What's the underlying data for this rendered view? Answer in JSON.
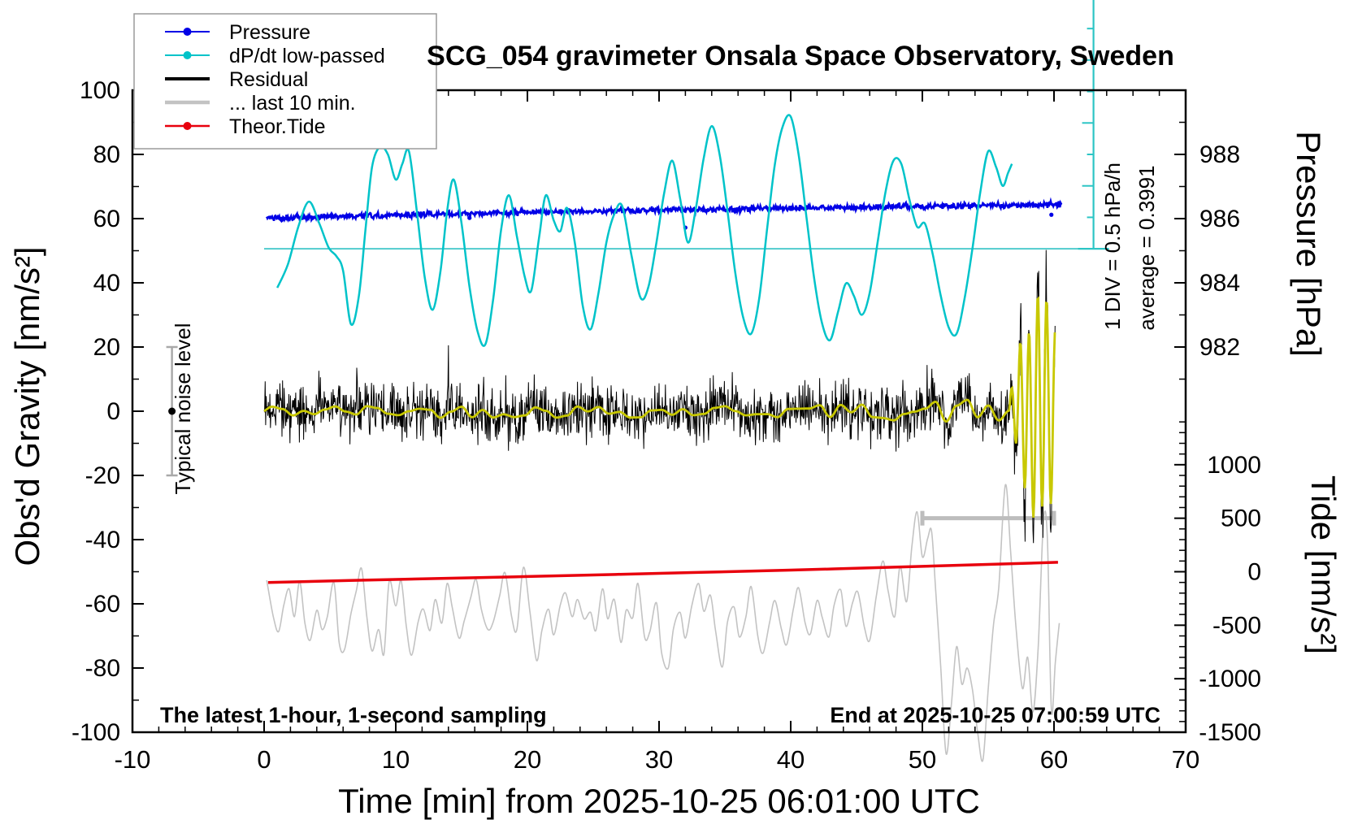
{
  "title": "SCG_054 gravimeter Onsala Space Observatory, Sweden",
  "legend": {
    "items": [
      {
        "label": "Pressure",
        "color": "#0000e6",
        "marker": true,
        "line_width": 2
      },
      {
        "label": "dP/dt low-passed",
        "color": "#00c3c9",
        "marker": true,
        "line_width": 2
      },
      {
        "label": "Residual",
        "color": "#000000",
        "marker": false,
        "line_width": 4
      },
      {
        "label": "... last 10 min.",
        "color": "#c3c3c3",
        "marker": false,
        "line_width": 4.5
      },
      {
        "label": "Theor.Tide",
        "color": "#e8000d",
        "marker": true,
        "line_width": 2.5
      }
    ]
  },
  "annotations": {
    "div_label": "1 DIV = 0.5 hPa/h",
    "avg_label": "average = 0.3991",
    "noise_label": "Typical noise level",
    "footer_left": "The latest 1-hour, 1-second sampling",
    "footer_right": "End at 2025-10-25 07:00:59 UTC"
  },
  "chart_data": {
    "type": "line",
    "title": "SCG_054 gravimeter Onsala Space Observatory, Sweden",
    "grid": false,
    "legend_position": "top-left",
    "x_axis": {
      "label": "Time [min] from 2025-10-25 06:01:00 UTC",
      "min": -10,
      "max": 70,
      "major_ticks": [
        -10,
        0,
        10,
        20,
        30,
        40,
        50,
        60,
        70
      ],
      "minor_step": 2
    },
    "y_left": {
      "label": "Obs'd Gravity [nm/s²]",
      "min": -100,
      "max": 100,
      "major_ticks": [
        100,
        80,
        60,
        40,
        20,
        0,
        -20,
        -40,
        -60,
        -80,
        -100
      ],
      "minor_step": 10
    },
    "y_right_pressure": {
      "label": "Pressure [hPa]",
      "major_ticks": [
        988,
        986,
        984,
        982
      ],
      "minor_step": 1,
      "mapping_note": "988 hPa aligns with +80 nm/s2; 2 hPa per 20 nm/s2"
    },
    "y_right_tide": {
      "label": "Tide [nm/s²]",
      "major_ticks": [
        1000,
        500,
        0,
        -500,
        -1000,
        -1500
      ],
      "minor_step": 100,
      "mapping_note": "tide 0 aligns with -50 nm/s2; 500 tide units per 16.67 nm/s2"
    },
    "dpdt_scale": {
      "t_position": 63,
      "div_value_hpa_per_h": 0.5,
      "n_div": 10,
      "zero_line_nms2": 50.6,
      "nms2_per_hpa_h": 19.6,
      "reference_line_t_range": [
        0,
        63
      ],
      "average_hpa_per_h": 0.3991
    },
    "noise_marker": {
      "t": -7,
      "center": 0,
      "half_range": 20
    },
    "last10_bracket": {
      "tide_value": 500,
      "t0": 50,
      "t1": 60
    },
    "series": {
      "pressure": {
        "name": "Pressure",
        "color": "#0000e6",
        "axis": "pressure",
        "noise_std_hpa": 0.045,
        "anchors": [
          [
            0.2,
            986.02
          ],
          [
            6,
            986.08
          ],
          [
            12,
            986.13
          ],
          [
            18,
            986.18
          ],
          [
            24,
            986.22
          ],
          [
            30,
            986.26
          ],
          [
            36,
            986.3
          ],
          [
            42,
            986.33
          ],
          [
            48,
            986.37
          ],
          [
            54,
            986.4
          ],
          [
            60.6,
            986.44
          ]
        ],
        "outliers": [
          [
            15.6,
            986.02
          ],
          [
            32,
            985.72
          ],
          [
            59.8,
            986.12
          ]
        ]
      },
      "dpdt": {
        "name": "dP/dt low-passed",
        "color": "#00c3c9",
        "axis": "hPa_per_h",
        "points": [
          [
            1.0,
            -0.62
          ],
          [
            1.8,
            -0.25
          ],
          [
            2.6,
            0.35
          ],
          [
            3.4,
            0.75
          ],
          [
            4.2,
            0.4
          ],
          [
            4.9,
            0.02
          ],
          [
            5.5,
            -0.12
          ],
          [
            6.0,
            -0.35
          ],
          [
            6.6,
            -1.2
          ],
          [
            7.2,
            -0.75
          ],
          [
            7.7,
            0.3
          ],
          [
            8.2,
            1.3
          ],
          [
            8.8,
            1.62
          ],
          [
            9.4,
            1.5
          ],
          [
            10.0,
            1.1
          ],
          [
            10.5,
            1.35
          ],
          [
            11.0,
            1.55
          ],
          [
            11.6,
            0.6
          ],
          [
            12.2,
            -0.45
          ],
          [
            12.8,
            -0.97
          ],
          [
            13.4,
            -0.35
          ],
          [
            13.9,
            0.6
          ],
          [
            14.4,
            1.1
          ],
          [
            15.0,
            0.4
          ],
          [
            15.6,
            -0.6
          ],
          [
            16.2,
            -1.3
          ],
          [
            16.8,
            -1.52
          ],
          [
            17.4,
            -0.8
          ],
          [
            18.0,
            0.3
          ],
          [
            18.6,
            0.85
          ],
          [
            19.2,
            0.2
          ],
          [
            19.8,
            -0.45
          ],
          [
            20.3,
            -0.66
          ],
          [
            20.9,
            0.2
          ],
          [
            21.4,
            0.85
          ],
          [
            22.0,
            0.45
          ],
          [
            22.5,
            0.28
          ],
          [
            23.0,
            0.65
          ],
          [
            23.6,
            0.1
          ],
          [
            24.2,
            -0.9
          ],
          [
            24.8,
            -1.28
          ],
          [
            25.4,
            -0.7
          ],
          [
            26.0,
            0.1
          ],
          [
            26.6,
            0.55
          ],
          [
            27.2,
            0.68
          ],
          [
            27.9,
            -0.1
          ],
          [
            28.6,
            -0.78
          ],
          [
            29.2,
            -0.6
          ],
          [
            29.8,
            0.1
          ],
          [
            30.4,
            0.9
          ],
          [
            31.0,
            1.4
          ],
          [
            31.6,
            0.8
          ],
          [
            32.2,
            0.1
          ],
          [
            32.8,
            0.65
          ],
          [
            33.4,
            1.45
          ],
          [
            34.0,
            1.95
          ],
          [
            34.6,
            1.5
          ],
          [
            35.2,
            0.6
          ],
          [
            35.8,
            -0.4
          ],
          [
            36.4,
            -1.1
          ],
          [
            37.0,
            -1.35
          ],
          [
            37.6,
            -0.8
          ],
          [
            38.2,
            0.3
          ],
          [
            38.8,
            1.35
          ],
          [
            39.4,
            1.95
          ],
          [
            40.0,
            2.1
          ],
          [
            40.6,
            1.5
          ],
          [
            41.2,
            0.5
          ],
          [
            41.8,
            -0.5
          ],
          [
            42.4,
            -1.2
          ],
          [
            43.0,
            -1.45
          ],
          [
            43.6,
            -1.0
          ],
          [
            44.2,
            -0.55
          ],
          [
            44.8,
            -0.75
          ],
          [
            45.4,
            -1.05
          ],
          [
            46.0,
            -0.7
          ],
          [
            46.6,
            0.1
          ],
          [
            47.2,
            0.9
          ],
          [
            47.8,
            1.4
          ],
          [
            48.4,
            1.35
          ],
          [
            49.0,
            0.8
          ],
          [
            49.6,
            0.35
          ],
          [
            50.2,
            0.4
          ],
          [
            50.8,
            -0.1
          ],
          [
            51.4,
            -0.75
          ],
          [
            52.0,
            -1.25
          ],
          [
            52.6,
            -1.35
          ],
          [
            53.2,
            -0.8
          ],
          [
            53.8,
            0.0
          ],
          [
            54.4,
            0.9
          ],
          [
            55.0,
            1.55
          ],
          [
            55.6,
            1.3
          ],
          [
            56.1,
            1.0
          ],
          [
            56.5,
            1.2
          ],
          [
            56.8,
            1.35
          ]
        ]
      },
      "residual": {
        "name": "Residual",
        "color": "#000000",
        "lowpass_color": "#c8c800",
        "t_range": [
          0,
          60.1
        ],
        "seed": 42,
        "noise_std_nms2": 4.2,
        "spike_prob": 0.012,
        "spike_extra_nms2": 9,
        "lowpass_wiggle_amp": [
          [
            0,
            2.0
          ],
          [
            45,
            2.2
          ],
          [
            50,
            3.5
          ],
          [
            56,
            4.5
          ]
        ],
        "burst": {
          "t0": 56.6,
          "t1": 60.1,
          "freq_cycles_per_min": 1.5,
          "amplitude_anchors": [
            [
              56.6,
              4
            ],
            [
              57.1,
              12
            ],
            [
              57.6,
              22
            ],
            [
              58.1,
              28
            ],
            [
              58.6,
              33
            ],
            [
              59.1,
              34
            ],
            [
              59.6,
              32
            ],
            [
              60.05,
              25
            ]
          ],
          "black_gain": 1.12
        }
      },
      "last10": {
        "name": "... last 10 min.",
        "color": "#c3c3c3",
        "axis": "tide",
        "points": [
          [
            0.2,
            -80
          ],
          [
            0.7,
            -420
          ],
          [
            1.1,
            -560
          ],
          [
            1.5,
            -310
          ],
          [
            1.9,
            -160
          ],
          [
            2.3,
            -420
          ],
          [
            2.7,
            -90
          ],
          [
            3.1,
            -480
          ],
          [
            3.5,
            -640
          ],
          [
            4.0,
            -360
          ],
          [
            4.4,
            -540
          ],
          [
            4.8,
            -420
          ],
          [
            5.3,
            -100
          ],
          [
            5.7,
            -660
          ],
          [
            6.1,
            -730
          ],
          [
            6.6,
            -390
          ],
          [
            7.0,
            -180
          ],
          [
            7.4,
            30
          ],
          [
            7.8,
            -420
          ],
          [
            8.2,
            -740
          ],
          [
            8.7,
            -540
          ],
          [
            9.1,
            -770
          ],
          [
            9.5,
            -90
          ],
          [
            10.0,
            -320
          ],
          [
            10.4,
            -80
          ],
          [
            10.8,
            -510
          ],
          [
            11.2,
            -780
          ],
          [
            11.7,
            -470
          ],
          [
            12.1,
            -350
          ],
          [
            12.6,
            -550
          ],
          [
            13.0,
            -260
          ],
          [
            13.5,
            -480
          ],
          [
            13.9,
            -110
          ],
          [
            14.3,
            -340
          ],
          [
            14.8,
            -620
          ],
          [
            15.2,
            -460
          ],
          [
            15.7,
            -240
          ],
          [
            16.1,
            -70
          ],
          [
            16.5,
            -350
          ],
          [
            17.0,
            -540
          ],
          [
            17.4,
            -470
          ],
          [
            17.9,
            -220
          ],
          [
            18.3,
            -10
          ],
          [
            18.8,
            -420
          ],
          [
            19.2,
            -540
          ],
          [
            19.7,
            40
          ],
          [
            20.2,
            -380
          ],
          [
            20.7,
            -830
          ],
          [
            21.1,
            -550
          ],
          [
            21.6,
            -350
          ],
          [
            22.0,
            -590
          ],
          [
            22.5,
            -310
          ],
          [
            22.9,
            -200
          ],
          [
            23.4,
            -420
          ],
          [
            23.8,
            -260
          ],
          [
            24.3,
            -440
          ],
          [
            24.8,
            -380
          ],
          [
            25.2,
            -550
          ],
          [
            25.7,
            -160
          ],
          [
            26.1,
            -440
          ],
          [
            26.6,
            -260
          ],
          [
            27.1,
            -660
          ],
          [
            27.5,
            -360
          ],
          [
            28.0,
            -430
          ],
          [
            28.4,
            -110
          ],
          [
            28.9,
            -610
          ],
          [
            29.3,
            -560
          ],
          [
            29.8,
            -290
          ],
          [
            30.2,
            -760
          ],
          [
            30.7,
            -900
          ],
          [
            31.1,
            -530
          ],
          [
            31.6,
            -380
          ],
          [
            32.0,
            -620
          ],
          [
            32.5,
            -310
          ],
          [
            33.0,
            -110
          ],
          [
            33.4,
            -370
          ],
          [
            33.9,
            -220
          ],
          [
            34.3,
            -560
          ],
          [
            34.8,
            -890
          ],
          [
            35.2,
            -470
          ],
          [
            35.7,
            -330
          ],
          [
            36.1,
            -610
          ],
          [
            36.6,
            -420
          ],
          [
            37.0,
            -140
          ],
          [
            37.5,
            -600
          ],
          [
            37.9,
            -760
          ],
          [
            38.4,
            -470
          ],
          [
            38.8,
            -270
          ],
          [
            39.3,
            -540
          ],
          [
            39.7,
            -680
          ],
          [
            40.2,
            -350
          ],
          [
            40.6,
            -150
          ],
          [
            41.1,
            -480
          ],
          [
            41.5,
            -580
          ],
          [
            42.0,
            -270
          ],
          [
            42.4,
            -430
          ],
          [
            42.9,
            -610
          ],
          [
            43.3,
            -310
          ],
          [
            43.8,
            -170
          ],
          [
            44.2,
            -510
          ],
          [
            44.7,
            -290
          ],
          [
            45.1,
            -190
          ],
          [
            45.6,
            -520
          ],
          [
            46.0,
            -640
          ],
          [
            46.5,
            -230
          ],
          [
            47.0,
            100
          ],
          [
            47.4,
            -180
          ],
          [
            47.9,
            -420
          ],
          [
            48.3,
            50
          ],
          [
            48.8,
            -280
          ],
          [
            49.2,
            230
          ],
          [
            49.6,
            560
          ],
          [
            50.0,
            140
          ],
          [
            50.4,
            310
          ],
          [
            50.7,
            380
          ],
          [
            51.0,
            -150
          ],
          [
            51.4,
            -900
          ],
          [
            51.8,
            -1700
          ],
          [
            52.2,
            -1250
          ],
          [
            52.6,
            -700
          ],
          [
            53.0,
            -1050
          ],
          [
            53.4,
            -900
          ],
          [
            53.8,
            -1100
          ],
          [
            54.2,
            -1500
          ],
          [
            54.6,
            -1760
          ],
          [
            55.0,
            -1100
          ],
          [
            55.4,
            -500
          ],
          [
            55.8,
            -150
          ],
          [
            56.3,
            810
          ],
          [
            56.7,
            200
          ],
          [
            57.1,
            -500
          ],
          [
            57.6,
            -1090
          ],
          [
            58.0,
            -800
          ],
          [
            58.4,
            -1310
          ],
          [
            58.8,
            -700
          ],
          [
            59.2,
            470
          ],
          [
            59.5,
            300
          ],
          [
            59.8,
            -1290
          ],
          [
            60.1,
            -850
          ],
          [
            60.4,
            -480
          ]
        ]
      },
      "theor_tide": {
        "name": "Theor.Tide",
        "color": "#e8000d",
        "axis": "tide",
        "points": [
          [
            0.3,
            -100
          ],
          [
            10,
            -72
          ],
          [
            20,
            -45
          ],
          [
            30,
            -15
          ],
          [
            40,
            15
          ],
          [
            50,
            50
          ],
          [
            60.3,
            88
          ]
        ]
      }
    }
  }
}
